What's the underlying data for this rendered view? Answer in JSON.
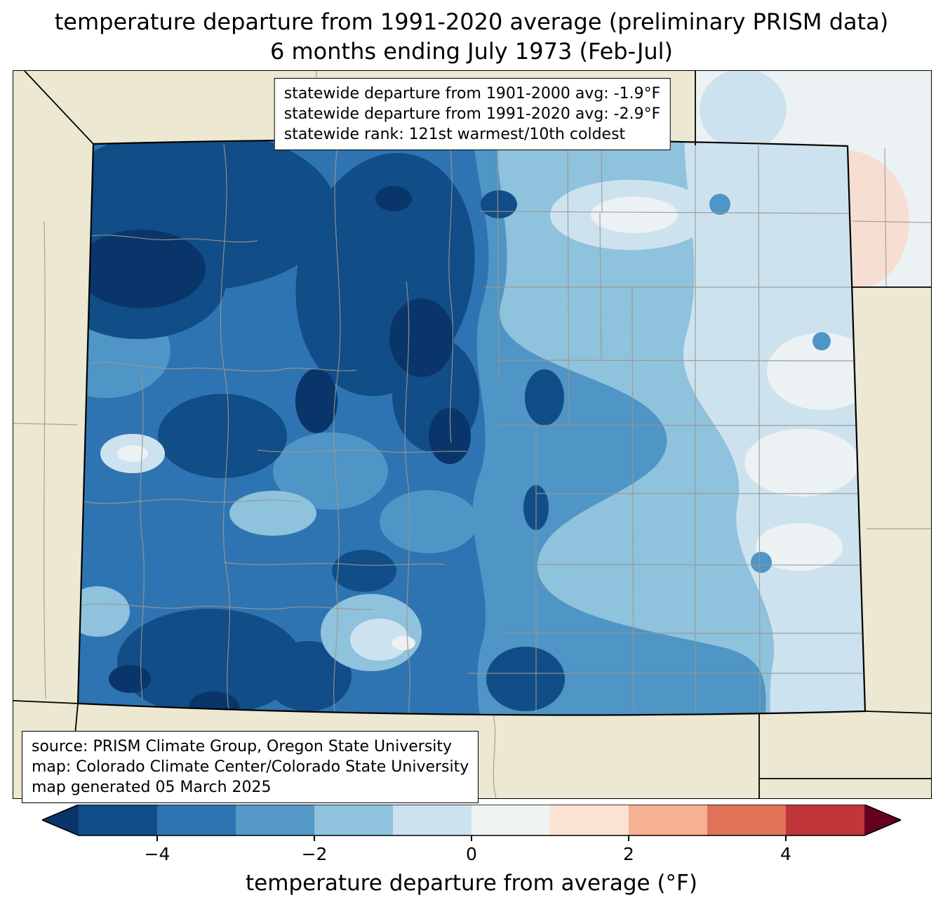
{
  "title": {
    "line1": "temperature departure from 1991-2020 average (preliminary PRISM data)",
    "line2": "6 months ending July 1973 (Feb-Jul)"
  },
  "stats_box": {
    "line1": "statewide departure from 1901-2000 avg: -1.9°F",
    "line2": "statewide departure from 1991-2020 avg: -2.9°F",
    "line3": "statewide rank: 121st warmest/10th coldest"
  },
  "source_box": {
    "line1": "source: PRISM Climate Group, Oregon State University",
    "line2": "map: Colorado Climate Center/Colorado State University",
    "line3": "map generated 05 March 2025"
  },
  "colorbar": {
    "label": "temperature departure from average (°F)",
    "ticks": [
      "−4",
      "−2",
      "0",
      "2",
      "4"
    ],
    "range": [
      -5,
      5
    ],
    "units": "°F",
    "arrow_left_color": "#0a356b",
    "arrow_right_color": "#67001f",
    "segment_colors": [
      "#114d86",
      "#2f74b2",
      "#5499c8",
      "#8fc2dc",
      "#cde2ef",
      "#eef2f3",
      "#fbe3d4",
      "#f6b092",
      "#e07258",
      "#c13639"
    ]
  },
  "map": {
    "region": "Colorado",
    "projection_note": "state map with county borders, cool (blue) departures dominate",
    "palette": {
      "beige": "#ece8d1",
      "black": "#000000",
      "county": "#9a988f",
      "darkest": "#0a356b",
      "dark1": "#114d86",
      "dark2": "#2f74b2",
      "base": "#4f95c6",
      "light": "#8fc2dc",
      "pale": "#cde2ef",
      "nearzero": "#ecf1f4",
      "pink": "#f6ded3"
    }
  }
}
